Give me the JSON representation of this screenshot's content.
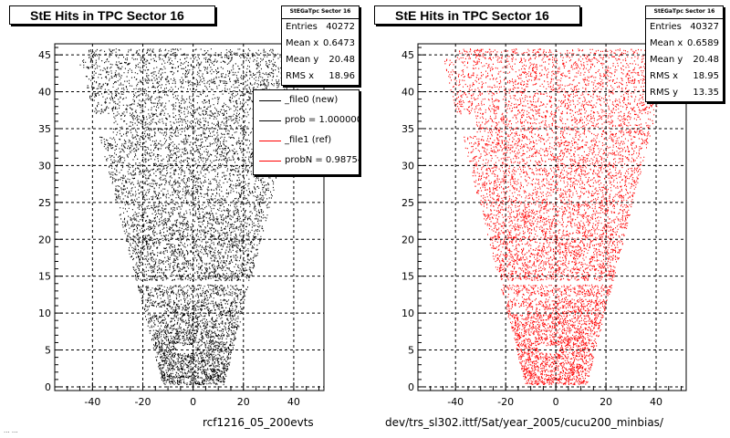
{
  "chart_data": [
    {
      "type": "scatter",
      "title": "StE Hits in TPC Sector 16",
      "color": "#000000",
      "xlim": [
        -55,
        52
      ],
      "ylim": [
        -0.5,
        46.5
      ],
      "x_ticks": [
        "-40",
        "-20",
        "0",
        "20",
        "40"
      ],
      "y_ticks": [
        "0",
        "5",
        "10",
        "15",
        "20",
        "25",
        "30",
        "35",
        "40",
        "45"
      ],
      "grid": true,
      "stats": {
        "name": "StEGaTpc Sector 16",
        "rows": [
          {
            "label": "Entries",
            "value": "40272"
          },
          {
            "label": "Mean x",
            "value": "0.6473"
          },
          {
            "label": "Mean y",
            "value": "20.48"
          },
          {
            "label": "RMS x",
            "value": "18.96"
          }
        ]
      },
      "legend": [
        {
          "label": "_file0 (new)",
          "color": "#000000"
        },
        {
          "label": "prob = 1.000000",
          "color": "#000000"
        },
        {
          "label": "_file1 (ref)",
          "color": "#ff0000"
        },
        {
          "label": "probN = 0.987540",
          "color": "#ff0000"
        }
      ],
      "footer": "rcf1216_05_200evts",
      "corner_text": "... ..."
    },
    {
      "type": "scatter",
      "title": "StE Hits in TPC Sector 16",
      "color": "#ff0000",
      "xlim": [
        -55,
        52
      ],
      "ylim": [
        -0.5,
        46.5
      ],
      "x_ticks": [
        "-40",
        "-20",
        "0",
        "20",
        "40"
      ],
      "y_ticks": [
        "0",
        "5",
        "10",
        "15",
        "20",
        "25",
        "30",
        "35",
        "40",
        "45"
      ],
      "grid": true,
      "stats": {
        "name": "StEGaTpc Sector 16",
        "rows": [
          {
            "label": "Entries",
            "value": "40327"
          },
          {
            "label": "Mean x",
            "value": "0.6589"
          },
          {
            "label": "Mean y",
            "value": "20.48"
          },
          {
            "label": "RMS x",
            "value": "18.95"
          },
          {
            "label": "RMS y",
            "value": "13.35"
          }
        ]
      },
      "footer": "dev/trs_sl302.ittf/Sat/year_2005/cucu200_minbias/"
    }
  ]
}
